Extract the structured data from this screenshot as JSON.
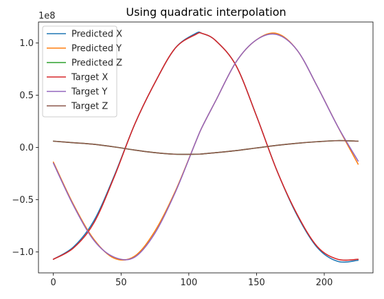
{
  "chart_data": {
    "type": "line",
    "title": "Using quadratic interpolation",
    "xlabel": "",
    "ylabel": "",
    "y_offset_label": "1e8",
    "xlim": [
      -11,
      236
    ],
    "ylim": [
      -1.2,
      1.2
    ],
    "x_ticks": [
      0,
      50,
      100,
      150,
      200
    ],
    "y_ticks": [
      -1.0,
      -0.5,
      0.0,
      0.5,
      1.0
    ],
    "x_tick_labels": [
      "0",
      "50",
      "100",
      "150",
      "200"
    ],
    "y_tick_labels": [
      "−1.0",
      "−0.5",
      "0.0",
      "0.5",
      "1.0"
    ],
    "grid": false,
    "legend_position": "top-left",
    "x": [
      0,
      15,
      30,
      45,
      60,
      75,
      90,
      105,
      110,
      120,
      135,
      150,
      165,
      180,
      195,
      210,
      225
    ],
    "series": [
      {
        "name": "Predicted X",
        "color": "#1f77b4",
        "values": [
          -1.07,
          -0.95,
          -0.7,
          -0.27,
          0.22,
          0.62,
          0.95,
          1.09,
          1.09,
          1.02,
          0.78,
          0.3,
          -0.22,
          -0.65,
          -0.96,
          -1.09,
          -1.08
        ]
      },
      {
        "name": "Predicted Y",
        "color": "#ff7f0e",
        "values": [
          -0.14,
          -0.55,
          -0.88,
          -1.06,
          -1.04,
          -0.8,
          -0.42,
          0.05,
          0.2,
          0.45,
          0.82,
          1.03,
          1.09,
          0.93,
          0.58,
          0.2,
          -0.16
        ]
      },
      {
        "name": "Predicted Z",
        "color": "#2ca02c",
        "values": [
          0.06,
          0.045,
          0.03,
          0.005,
          -0.025,
          -0.05,
          -0.065,
          -0.065,
          -0.062,
          -0.05,
          -0.03,
          -0.005,
          0.02,
          0.04,
          0.055,
          0.065,
          0.06
        ]
      },
      {
        "name": "Target X",
        "color": "#d62728",
        "values": [
          -1.07,
          -0.96,
          -0.72,
          -0.28,
          0.22,
          0.62,
          0.95,
          1.08,
          1.09,
          1.02,
          0.78,
          0.3,
          -0.22,
          -0.64,
          -0.95,
          -1.07,
          -1.07
        ]
      },
      {
        "name": "Target Y",
        "color": "#9467bd",
        "values": [
          -0.15,
          -0.56,
          -0.89,
          -1.05,
          -1.05,
          -0.82,
          -0.43,
          0.05,
          0.2,
          0.45,
          0.82,
          1.03,
          1.08,
          0.93,
          0.58,
          0.2,
          -0.13
        ]
      },
      {
        "name": "Target Z",
        "color": "#8c564b",
        "values": [
          0.06,
          0.045,
          0.03,
          0.005,
          -0.025,
          -0.05,
          -0.065,
          -0.065,
          -0.062,
          -0.05,
          -0.03,
          -0.005,
          0.02,
          0.04,
          0.055,
          0.065,
          0.06
        ]
      }
    ]
  }
}
